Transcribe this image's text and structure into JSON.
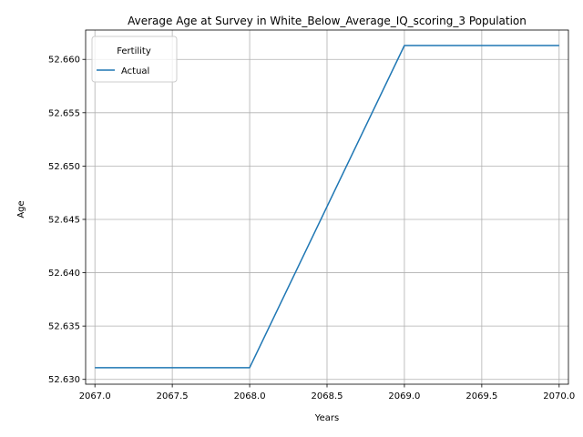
{
  "chart_data": {
    "type": "line",
    "title": "Average Age at Survey in White_Below_Average_IQ_scoring_3 Population",
    "xlabel": "Years",
    "ylabel": "Age",
    "xlim": [
      2066.94,
      2070.06
    ],
    "ylim": [
      52.62955,
      52.66275
    ],
    "x_ticks": [
      2067.0,
      2067.5,
      2068.0,
      2068.5,
      2069.0,
      2069.5,
      2070.0
    ],
    "x_tick_labels": [
      "2067.0",
      "2067.5",
      "2068.0",
      "2068.5",
      "2069.0",
      "2069.5",
      "2070.0"
    ],
    "y_ticks": [
      52.63,
      52.635,
      52.64,
      52.645,
      52.65,
      52.655,
      52.66
    ],
    "y_tick_labels": [
      "52.630",
      "52.635",
      "52.640",
      "52.645",
      "52.650",
      "52.655",
      "52.660"
    ],
    "grid": true,
    "legend": {
      "title": "Fertility",
      "placement": "top-left"
    },
    "series": [
      {
        "name": "Actual",
        "color": "#1f77b4",
        "x": [
          2067,
          2068,
          2069,
          2070
        ],
        "y": [
          52.6311,
          52.6311,
          52.6613,
          52.6613
        ]
      }
    ]
  }
}
